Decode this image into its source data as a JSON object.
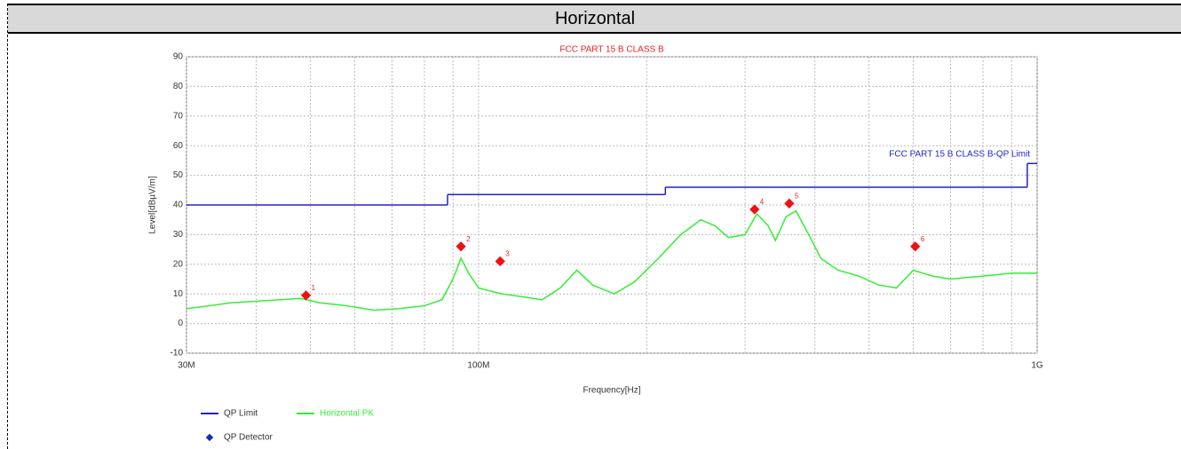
{
  "header": "Horizontal",
  "chart_data": {
    "type": "line",
    "title": "FCC PART 15 B CLASS B",
    "limit_label": "FCC PART 15 B CLASS B-QP Limit",
    "xlabel": "Frequency[Hz]",
    "ylabel": "Level[dBµV/m]",
    "xscale": "log",
    "xlim": [
      30,
      1000
    ],
    "xticks": [
      {
        "value": 30,
        "label": "30M"
      },
      {
        "value": 100,
        "label": "100M"
      },
      {
        "value": 1000,
        "label": "1G"
      }
    ],
    "xminor": [
      40,
      50,
      60,
      70,
      80,
      90,
      200,
      300,
      400,
      500,
      600,
      700,
      800,
      900
    ],
    "ylim": [
      -10,
      90
    ],
    "yticks": [
      -10,
      0,
      10,
      20,
      30,
      40,
      50,
      60,
      70,
      80,
      90
    ],
    "grid": true,
    "limit": {
      "name": "QP Limit",
      "color": "#2222cc",
      "x": [
        30,
        88,
        216,
        960
      ],
      "values": [
        40,
        43.5,
        46,
        54
      ]
    },
    "series": [
      {
        "name": "Horizontal PK",
        "color": "#33ee33",
        "x": [
          30,
          33,
          36,
          40,
          44,
          48,
          52,
          58,
          65,
          72,
          80,
          86,
          90,
          93,
          96,
          100,
          110,
          120,
          130,
          140,
          150,
          160,
          175,
          190,
          210,
          230,
          250,
          265,
          280,
          300,
          315,
          330,
          340,
          355,
          370,
          390,
          410,
          440,
          480,
          520,
          560,
          600,
          650,
          700,
          800,
          900,
          1000
        ],
        "values": [
          5,
          6,
          7,
          7.5,
          8,
          8.5,
          7,
          6,
          4.5,
          5,
          6,
          8,
          15,
          22,
          17,
          12,
          10,
          9,
          8,
          12,
          18,
          13,
          10,
          14,
          22,
          30,
          35,
          33,
          29,
          30,
          37,
          33,
          28,
          36,
          38,
          30,
          22,
          18,
          16,
          13,
          12,
          18,
          16,
          15,
          16,
          17,
          17
        ]
      }
    ],
    "markers": {
      "name": "QP Detector",
      "color": "#ee1111",
      "labels": [
        "1",
        "2",
        "3",
        "4",
        "5",
        "6"
      ],
      "x": [
        49.1,
        93,
        109.3,
        312,
        360,
        605
      ],
      "values": [
        9.5,
        26,
        21,
        38.5,
        40.5,
        26
      ]
    }
  }
}
